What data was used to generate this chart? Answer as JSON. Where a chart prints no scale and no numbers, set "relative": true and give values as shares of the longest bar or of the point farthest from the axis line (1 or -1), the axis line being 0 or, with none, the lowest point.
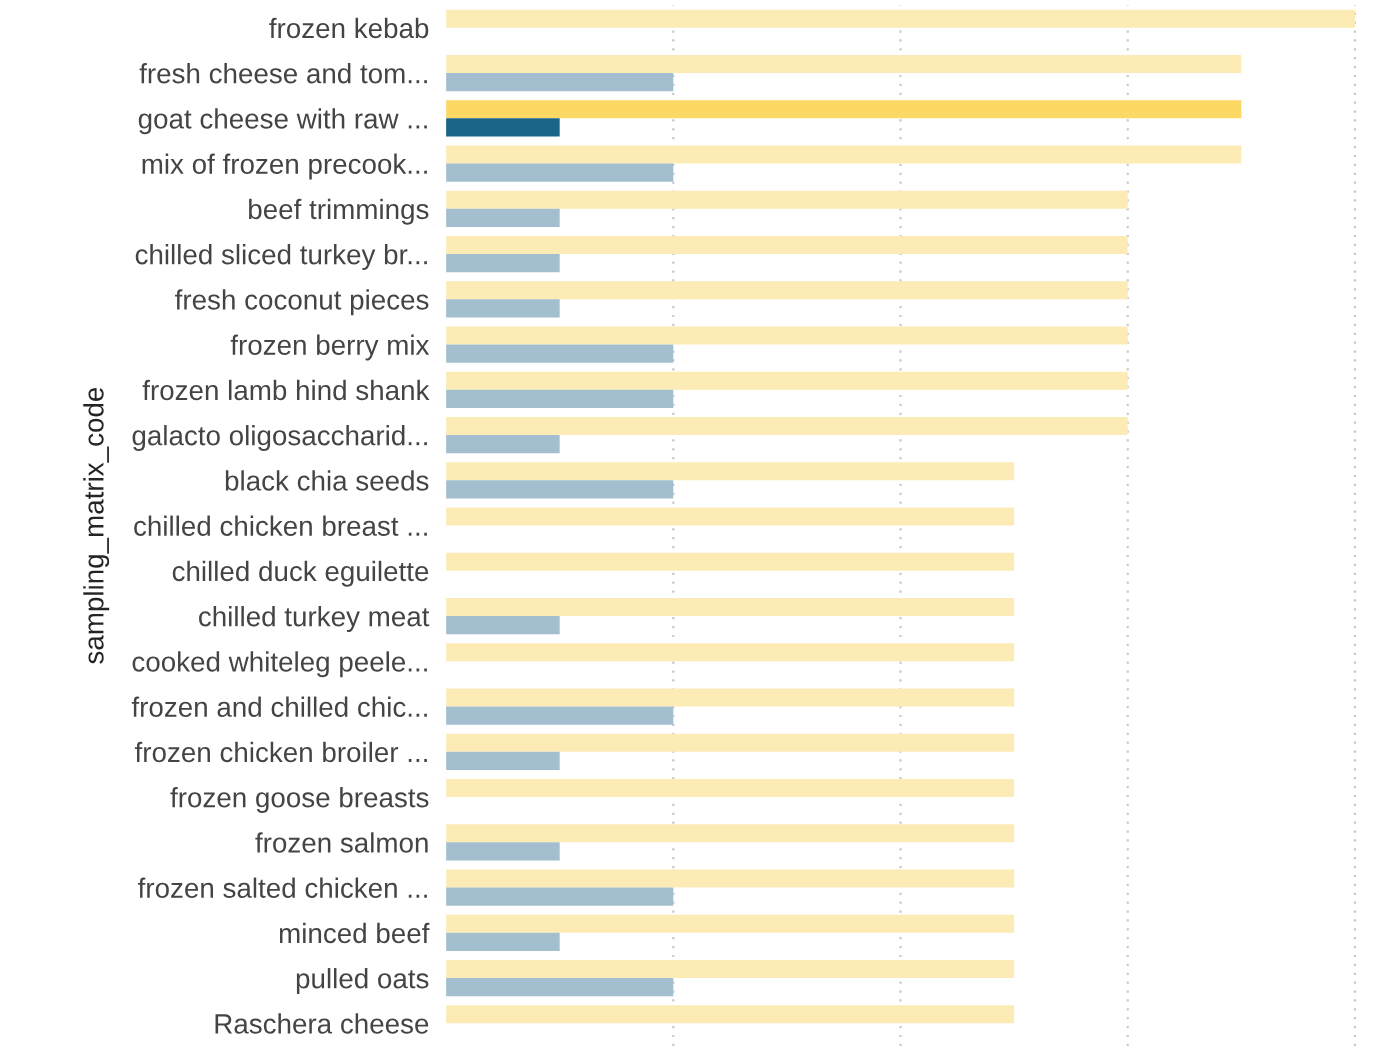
{
  "chart_data": {
    "type": "bar",
    "orientation": "horizontal",
    "relative": true,
    "ylabel": "sampling_matrix_code",
    "grid": "x",
    "categories": [
      "frozen kebab",
      "fresh cheese and tom...",
      "goat cheese with raw ...",
      "mix of frozen precook...",
      "beef trimmings",
      "chilled sliced turkey br...",
      "fresh coconut pieces",
      "frozen berry mix",
      "frozen lamb hind shank",
      "galacto oligosaccharid...",
      "black chia seeds",
      "chilled chicken breast ...",
      "chilled duck eguilette",
      "chilled turkey meat",
      "cooked whiteleg peele...",
      "frozen and chilled chic...",
      "frozen chicken broiler ...",
      "frozen goose breasts",
      "frozen salmon",
      "frozen salted chicken ...",
      "minced beef",
      "pulled oats",
      "Raschera cheese"
    ],
    "series": [
      {
        "colors": [
          "#fdebb5",
          "#fdebb5",
          "#fcd864",
          "#fdebb5",
          "#fdebb5",
          "#fdebb5",
          "#fdebb5",
          "#fdebb5",
          "#fdebb5",
          "#fdebb5",
          "#fdebb5",
          "#fdebb5",
          "#fdebb5",
          "#fdebb5",
          "#fdebb5",
          "#fdebb5",
          "#fdebb5",
          "#fdebb5",
          "#fdebb5",
          "#fdebb5",
          "#fdebb5",
          "#fdebb5",
          "#fdebb5"
        ],
        "values": [
          1,
          0.875,
          0.875,
          0.875,
          0.75,
          0.75,
          0.75,
          0.75,
          0.75,
          0.75,
          0.625,
          0.625,
          0.625,
          0.625,
          0.625,
          0.625,
          0.625,
          0.625,
          0.625,
          0.625,
          0.625,
          0.625,
          0.625
        ]
      },
      {
        "colors": [
          "#a3bfcf",
          "#a3bfcf",
          "#1a6587",
          "#a3bfcf",
          "#a3bfcf",
          "#a3bfcf",
          "#a3bfcf",
          "#a3bfcf",
          "#a3bfcf",
          "#a3bfcf",
          "#a3bfcf",
          "#a3bfcf",
          "#a3bfcf",
          "#a3bfcf",
          "#a3bfcf",
          "#a3bfcf",
          "#a3bfcf",
          "#a3bfcf",
          "#a3bfcf",
          "#a3bfcf",
          "#a3bfcf",
          "#a3bfcf",
          "#a3bfcf"
        ],
        "values": [
          null,
          0.25,
          0.125,
          0.25,
          0.125,
          0.125,
          0.125,
          0.25,
          0.25,
          0.125,
          0.25,
          null,
          null,
          0.125,
          null,
          0.25,
          0.125,
          null,
          0.125,
          0.25,
          0.125,
          0.25,
          null
        ]
      }
    ]
  }
}
